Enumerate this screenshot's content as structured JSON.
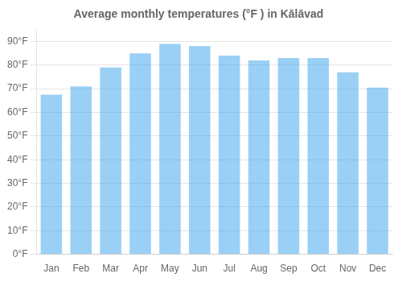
{
  "chart_data": {
    "type": "bar",
    "title": "Average monthly temperatures (°F ) in Kālāvad",
    "categories": [
      "Jan",
      "Feb",
      "Mar",
      "Apr",
      "May",
      "Jun",
      "Jul",
      "Aug",
      "Sep",
      "Oct",
      "Nov",
      "Dec"
    ],
    "values": [
      67.5,
      71.0,
      79.0,
      85.0,
      89.0,
      88.0,
      84.0,
      82.0,
      83.0,
      83.0,
      77.0,
      70.5
    ],
    "ylim": [
      0,
      95
    ],
    "yticks": [
      {
        "value": 0,
        "label": "0°F"
      },
      {
        "value": 10,
        "label": "10°F"
      },
      {
        "value": 20,
        "label": "20°F"
      },
      {
        "value": 30,
        "label": "30°F"
      },
      {
        "value": 40,
        "label": "40°F"
      },
      {
        "value": 50,
        "label": "50°F"
      },
      {
        "value": 60,
        "label": "60°F"
      },
      {
        "value": 70,
        "label": "70°F"
      },
      {
        "value": 80,
        "label": "80°F"
      },
      {
        "value": 90,
        "label": "90°F"
      }
    ],
    "grid": true
  }
}
